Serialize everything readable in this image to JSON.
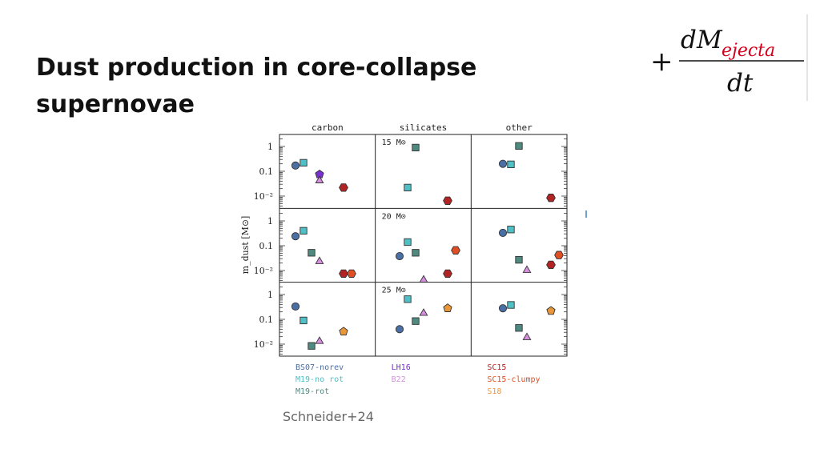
{
  "slide": {
    "title": "Dust production in core-collapse supernovae",
    "citation": "Schneider+24",
    "formula": {
      "prefix": "+",
      "numerator_d": "d",
      "numerator_M": "M",
      "numerator_sub": "ejecta",
      "denominator": "dt"
    }
  },
  "chart_data": {
    "type": "scatter",
    "yscale": "log",
    "ylim": [
      0.005,
      3
    ],
    "ylabel": "m_dust [M⊙]",
    "yticks": [
      {
        "value": 1,
        "label": "1"
      },
      {
        "value": 0.1,
        "label": "0.1"
      },
      {
        "value": 0.01,
        "label": "10⁻²"
      }
    ],
    "columns": [
      "carbon",
      "silicates",
      "other"
    ],
    "rows": [
      "15 M⊙",
      "20 M⊙",
      "25 M⊙"
    ],
    "series": [
      {
        "name": "BS07-norev",
        "color": "#4a6fa5",
        "marker": "circle"
      },
      {
        "name": "M19-no rot",
        "color": "#4fc0c6",
        "marker": "square"
      },
      {
        "name": "M19-rot",
        "color": "#4f8a80",
        "marker": "square"
      },
      {
        "name": "LH16",
        "color": "#7a2fd0",
        "marker": "pentagon"
      },
      {
        "name": "B22",
        "color": "#d88ee0",
        "marker": "triangle"
      },
      {
        "name": "SC15",
        "color": "#b22323",
        "marker": "hexagon"
      },
      {
        "name": "SC15-clumpy",
        "color": "#e04f23",
        "marker": "hexagon"
      },
      {
        "name": "S18",
        "color": "#e8963a",
        "marker": "pentagon"
      }
    ],
    "points": [
      {
        "row": 0,
        "col": 0,
        "series": "BS07-norev",
        "y": 0.17
      },
      {
        "row": 0,
        "col": 0,
        "series": "M19-no rot",
        "y": 0.22
      },
      {
        "row": 0,
        "col": 0,
        "series": "LH16",
        "y": 0.075
      },
      {
        "row": 0,
        "col": 0,
        "series": "B22",
        "y": 0.045
      },
      {
        "row": 0,
        "col": 0,
        "series": "SC15",
        "y": 0.022
      },
      {
        "row": 0,
        "col": 1,
        "series": "M19-rot",
        "y": 0.9
      },
      {
        "row": 0,
        "col": 1,
        "series": "M19-no rot",
        "y": 0.022
      },
      {
        "row": 0,
        "col": 1,
        "series": "SC15",
        "y": 0.0065
      },
      {
        "row": 0,
        "col": 2,
        "series": "M19-rot",
        "y": 1.05
      },
      {
        "row": 0,
        "col": 2,
        "series": "BS07-norev",
        "y": 0.2
      },
      {
        "row": 0,
        "col": 2,
        "series": "M19-no rot",
        "y": 0.19
      },
      {
        "row": 0,
        "col": 2,
        "series": "SC15",
        "y": 0.0085
      },
      {
        "row": 1,
        "col": 0,
        "series": "BS07-norev",
        "y": 0.24
      },
      {
        "row": 1,
        "col": 0,
        "series": "M19-no rot",
        "y": 0.4
      },
      {
        "row": 1,
        "col": 0,
        "series": "M19-rot",
        "y": 0.052
      },
      {
        "row": 1,
        "col": 0,
        "series": "B22",
        "y": 0.025
      },
      {
        "row": 1,
        "col": 0,
        "series": "SC15",
        "y": 0.0075
      },
      {
        "row": 1,
        "col": 0,
        "series": "SC15-clumpy",
        "y": 0.0075
      },
      {
        "row": 1,
        "col": 1,
        "series": "M19-no rot",
        "y": 0.14
      },
      {
        "row": 1,
        "col": 1,
        "series": "BS07-norev",
        "y": 0.038
      },
      {
        "row": 1,
        "col": 1,
        "series": "M19-rot",
        "y": 0.052
      },
      {
        "row": 1,
        "col": 1,
        "series": "SC15-clumpy",
        "y": 0.065
      },
      {
        "row": 1,
        "col": 1,
        "series": "B22",
        "y": 0.0045
      },
      {
        "row": 1,
        "col": 1,
        "series": "SC15",
        "y": 0.0075
      },
      {
        "row": 1,
        "col": 2,
        "series": "BS07-norev",
        "y": 0.33
      },
      {
        "row": 1,
        "col": 2,
        "series": "M19-no rot",
        "y": 0.45
      },
      {
        "row": 1,
        "col": 2,
        "series": "M19-rot",
        "y": 0.027
      },
      {
        "row": 1,
        "col": 2,
        "series": "B22",
        "y": 0.011
      },
      {
        "row": 1,
        "col": 2,
        "series": "SC15",
        "y": 0.017
      },
      {
        "row": 1,
        "col": 2,
        "series": "SC15-clumpy",
        "y": 0.042
      },
      {
        "row": 2,
        "col": 0,
        "series": "BS07-norev",
        "y": 0.33
      },
      {
        "row": 2,
        "col": 0,
        "series": "M19-no rot",
        "y": 0.09
      },
      {
        "row": 2,
        "col": 0,
        "series": "M19-rot",
        "y": 0.0085
      },
      {
        "row": 2,
        "col": 0,
        "series": "B22",
        "y": 0.014
      },
      {
        "row": 2,
        "col": 0,
        "series": "S18",
        "y": 0.032
      },
      {
        "row": 2,
        "col": 1,
        "series": "M19-no rot",
        "y": 0.65
      },
      {
        "row": 2,
        "col": 1,
        "series": "BS07-norev",
        "y": 0.04
      },
      {
        "row": 2,
        "col": 1,
        "series": "M19-rot",
        "y": 0.085
      },
      {
        "row": 2,
        "col": 1,
        "series": "B22",
        "y": 0.19
      },
      {
        "row": 2,
        "col": 1,
        "series": "S18",
        "y": 0.28
      },
      {
        "row": 2,
        "col": 2,
        "series": "BS07-norev",
        "y": 0.28
      },
      {
        "row": 2,
        "col": 2,
        "series": "M19-no rot",
        "y": 0.38
      },
      {
        "row": 2,
        "col": 2,
        "series": "M19-rot",
        "y": 0.045
      },
      {
        "row": 2,
        "col": 2,
        "series": "B22",
        "y": 0.02
      },
      {
        "row": 2,
        "col": 2,
        "series": "S18",
        "y": 0.22
      }
    ]
  }
}
